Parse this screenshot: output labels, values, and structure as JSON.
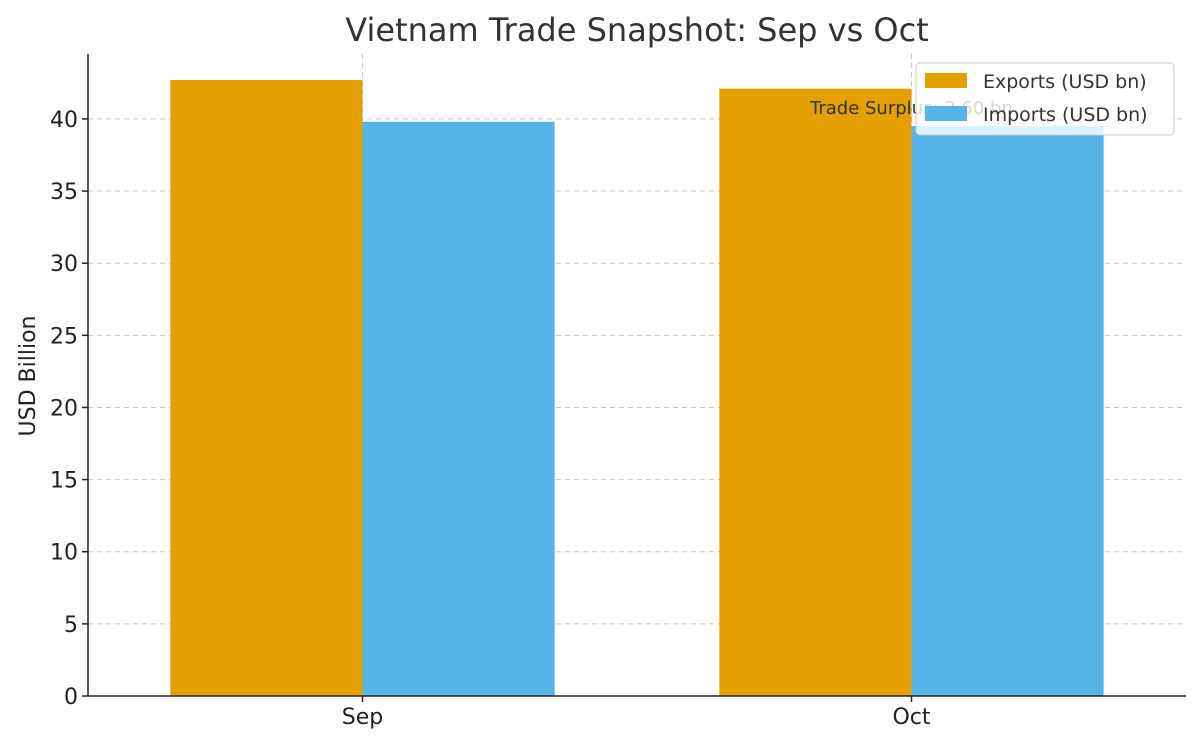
{
  "chart_data": {
    "type": "bar",
    "title": "Vietnam Trade Snapshot: Sep vs Oct",
    "xlabel": "",
    "ylabel": "USD Billion",
    "categories": [
      "Sep",
      "Oct"
    ],
    "series": [
      {
        "name": "Exports (USD bn)",
        "values": [
          42.7,
          42.1
        ],
        "color": "#E69F00"
      },
      {
        "name": "Imports (USD bn)",
        "values": [
          39.8,
          39.5
        ],
        "color": "#56B4E9"
      }
    ],
    "ylim": [
      0,
      44.5
    ],
    "yticks": [
      0,
      5,
      10,
      15,
      20,
      25,
      30,
      35,
      40
    ],
    "grid": true,
    "legend_position": "top-right",
    "annotation": {
      "text": "Trade Surplus: 2.60 bn",
      "category": "Oct"
    }
  }
}
